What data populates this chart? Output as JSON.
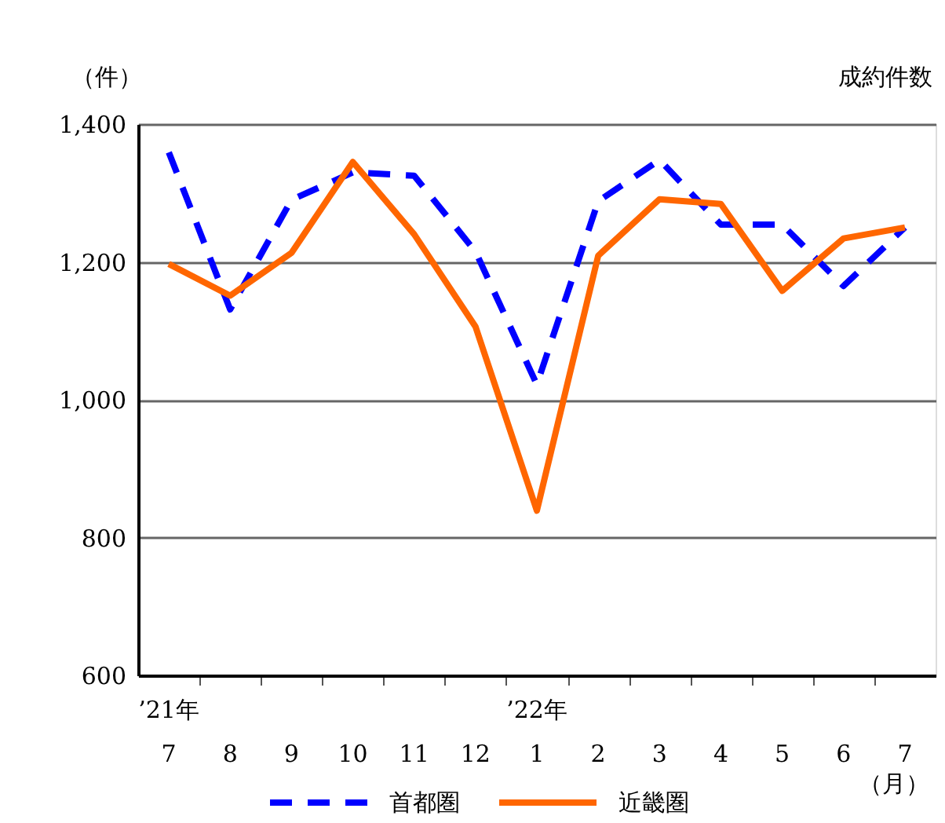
{
  "chart_data": {
    "type": "line",
    "title": "成約件数",
    "ylabel": "（件）",
    "xlabel": "（月）",
    "categories": [
      "’21年\n7",
      "8",
      "9",
      "10",
      "11",
      "12",
      "’22年\n1",
      "2",
      "3",
      "4",
      "5",
      "6",
      "7"
    ],
    "series": [
      {
        "name": "首都圏",
        "color": "#0000ff",
        "line_style": "dashed",
        "values": [
          1359,
          1131,
          1290,
          1330,
          1325,
          1215,
          1022,
          1288,
          1348,
          1254,
          1254,
          1165,
          1250
        ]
      },
      {
        "name": "近畿圏",
        "color": "#ff6600",
        "line_style": "solid",
        "values": [
          1197,
          1151,
          1213,
          1345,
          1240,
          1106,
          839,
          1209,
          1291,
          1284,
          1158,
          1234,
          1250
        ]
      }
    ],
    "ylim": [
      600,
      1400
    ],
    "yticks": [
      600,
      800,
      {
        "value": 1000,
        "label": "1,000"
      },
      {
        "value": 1200,
        "label": "1,200"
      },
      {
        "value": 1400,
        "label": "1,400"
      }
    ],
    "grid": "y",
    "legend": "bottom",
    "marker": "none"
  }
}
